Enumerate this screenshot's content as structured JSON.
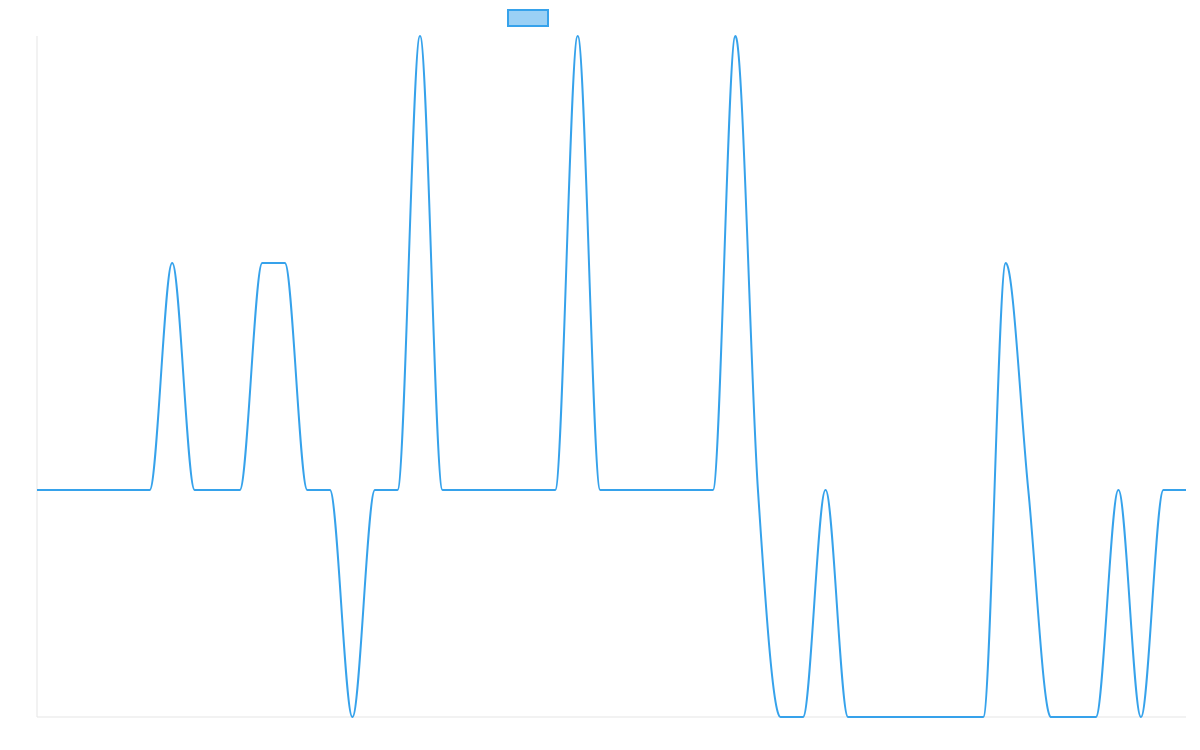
{
  "chart_data": {
    "type": "line",
    "title": "",
    "xlabel": "",
    "ylabel": "",
    "x": [
      0,
      1,
      2,
      3,
      4,
      5,
      6,
      7,
      8,
      9,
      10,
      11,
      12,
      13,
      14,
      15,
      16,
      17,
      18,
      19,
      20,
      21,
      22,
      23,
      24,
      25,
      26,
      27,
      28,
      29,
      30,
      31,
      32,
      33,
      34,
      35,
      36,
      37,
      38,
      39,
      40,
      41,
      42,
      43,
      44,
      45,
      46,
      47,
      48,
      49,
      50,
      51
    ],
    "ylim": [
      -1,
      2
    ],
    "grid": false,
    "legend": {
      "position": "top-center"
    },
    "series": [
      {
        "name": "",
        "color": "#36a2eb",
        "fill": "#9ad0f5",
        "values": [
          0,
          0,
          0,
          0,
          0,
          0,
          1,
          0,
          0,
          0,
          1,
          1,
          0,
          0,
          -1,
          0,
          0,
          2,
          0,
          0,
          0,
          0,
          0,
          0,
          2,
          0,
          0,
          0,
          0,
          0,
          0,
          2,
          0,
          -1,
          -1,
          0,
          -1,
          -1,
          -1,
          -1,
          -1,
          -1,
          -1,
          1,
          0,
          -1,
          -1,
          -1,
          0,
          -1,
          0,
          0
        ]
      }
    ]
  }
}
